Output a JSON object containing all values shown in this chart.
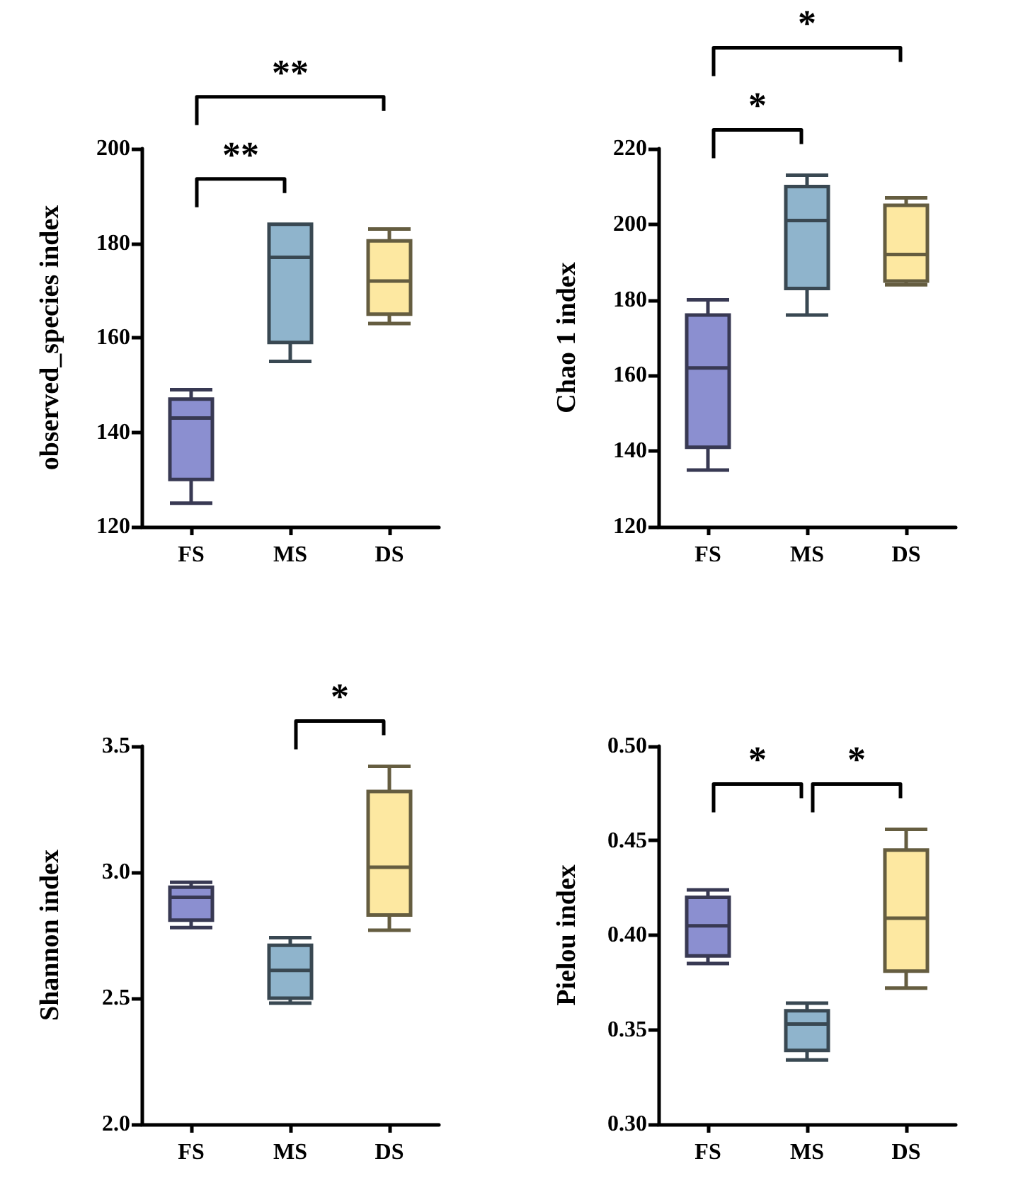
{
  "chart_data": [
    {
      "type": "box",
      "ylabel": "observed_species index",
      "categories": [
        "FS",
        "MS",
        "DS"
      ],
      "colors": [
        "#8b8fd0",
        "#8fb4cc",
        "#fde8a1"
      ],
      "ylim": [
        120,
        200
      ],
      "yticks": [
        120,
        140,
        160,
        180,
        200
      ],
      "grid": false,
      "boxes": [
        {
          "low": 125,
          "q1": 130,
          "median": 143,
          "q3": 147,
          "high": 149
        },
        {
          "low": 155,
          "q1": 159,
          "median": 177,
          "q3": 184,
          "high": 184
        },
        {
          "low": 163,
          "q1": 165,
          "median": 172,
          "q3": 180.5,
          "high": 183
        }
      ],
      "annotations": [
        "**",
        "**"
      ]
    },
    {
      "type": "box",
      "ylabel": "Chao 1 index",
      "categories": [
        "FS",
        "MS",
        "DS"
      ],
      "colors": [
        "#8b8fd0",
        "#8fb4cc",
        "#fde8a1"
      ],
      "ylim": [
        120,
        220
      ],
      "yticks": [
        120,
        140,
        160,
        180,
        200,
        220
      ],
      "grid": false,
      "boxes": [
        {
          "low": 135,
          "q1": 141,
          "median": 162,
          "q3": 176,
          "high": 180
        },
        {
          "low": 176,
          "q1": 183,
          "median": 201,
          "q3": 210,
          "high": 213
        },
        {
          "low": 184,
          "q1": 185,
          "median": 192,
          "q3": 205,
          "high": 207
        }
      ],
      "annotations": [
        "*",
        "*"
      ]
    },
    {
      "type": "box",
      "ylabel": "Shannon index",
      "categories": [
        "FS",
        "MS",
        "DS"
      ],
      "colors": [
        "#8b8fd0",
        "#8fb4cc",
        "#fde8a1"
      ],
      "ylim": [
        2.0,
        3.5
      ],
      "yticks": [
        {
          "value": 2,
          "label": "2.0"
        },
        2.5,
        {
          "value": 3,
          "label": "3.0"
        },
        3.5
      ],
      "grid": false,
      "boxes": [
        {
          "low": 2.78,
          "q1": 2.81,
          "median": 2.9,
          "q3": 2.94,
          "high": 2.96
        },
        {
          "low": 2.48,
          "q1": 2.5,
          "median": 2.61,
          "q3": 2.71,
          "high": 2.74
        },
        {
          "low": 2.77,
          "q1": 2.83,
          "median": 3.02,
          "q3": 3.32,
          "high": 3.42
        }
      ],
      "annotations": [
        "*"
      ]
    },
    {
      "type": "box",
      "ylabel": "Pielou index",
      "categories": [
        "FS",
        "MS",
        "DS"
      ],
      "colors": [
        "#8b8fd0",
        "#8fb4cc",
        "#fde8a1"
      ],
      "ylim": [
        0.3,
        0.5
      ],
      "yticks": [
        {
          "value": 0.3,
          "label": "0.30"
        },
        0.35,
        {
          "value": 0.4,
          "label": "0.40"
        },
        0.45,
        {
          "value": 0.5,
          "label": "0.50"
        }
      ],
      "grid": false,
      "boxes": [
        {
          "low": 0.385,
          "q1": 0.389,
          "median": 0.405,
          "q3": 0.42,
          "high": 0.424
        },
        {
          "low": 0.334,
          "q1": 0.339,
          "median": 0.353,
          "q3": 0.36,
          "high": 0.364
        },
        {
          "low": 0.372,
          "q1": 0.381,
          "median": 0.409,
          "q3": 0.445,
          "high": 0.456
        }
      ],
      "annotations": [
        "*",
        "*"
      ]
    }
  ]
}
